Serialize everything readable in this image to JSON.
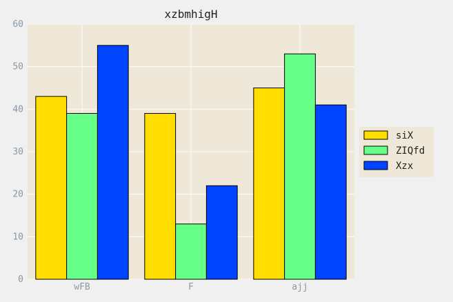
{
  "chart_data": {
    "type": "bar",
    "title": "xzbmhigH",
    "xlabel": "",
    "ylabel": "",
    "categories": [
      "wFB",
      "F",
      "ajj"
    ],
    "series": [
      {
        "name": "siX",
        "values": [
          43,
          39,
          45
        ],
        "color": "#ffdd00"
      },
      {
        "name": "ZIQfd",
        "values": [
          39,
          13,
          53
        ],
        "color": "#66ff88"
      },
      {
        "name": "Xzx",
        "values": [
          55,
          22,
          41
        ],
        "color": "#0044ff"
      }
    ],
    "ylim": [
      0,
      60
    ],
    "yticks": [
      "0",
      "10",
      "20",
      "30",
      "40",
      "50",
      "60"
    ],
    "grid": true,
    "legend_position": "right",
    "plot_background": "#efe8d8"
  }
}
